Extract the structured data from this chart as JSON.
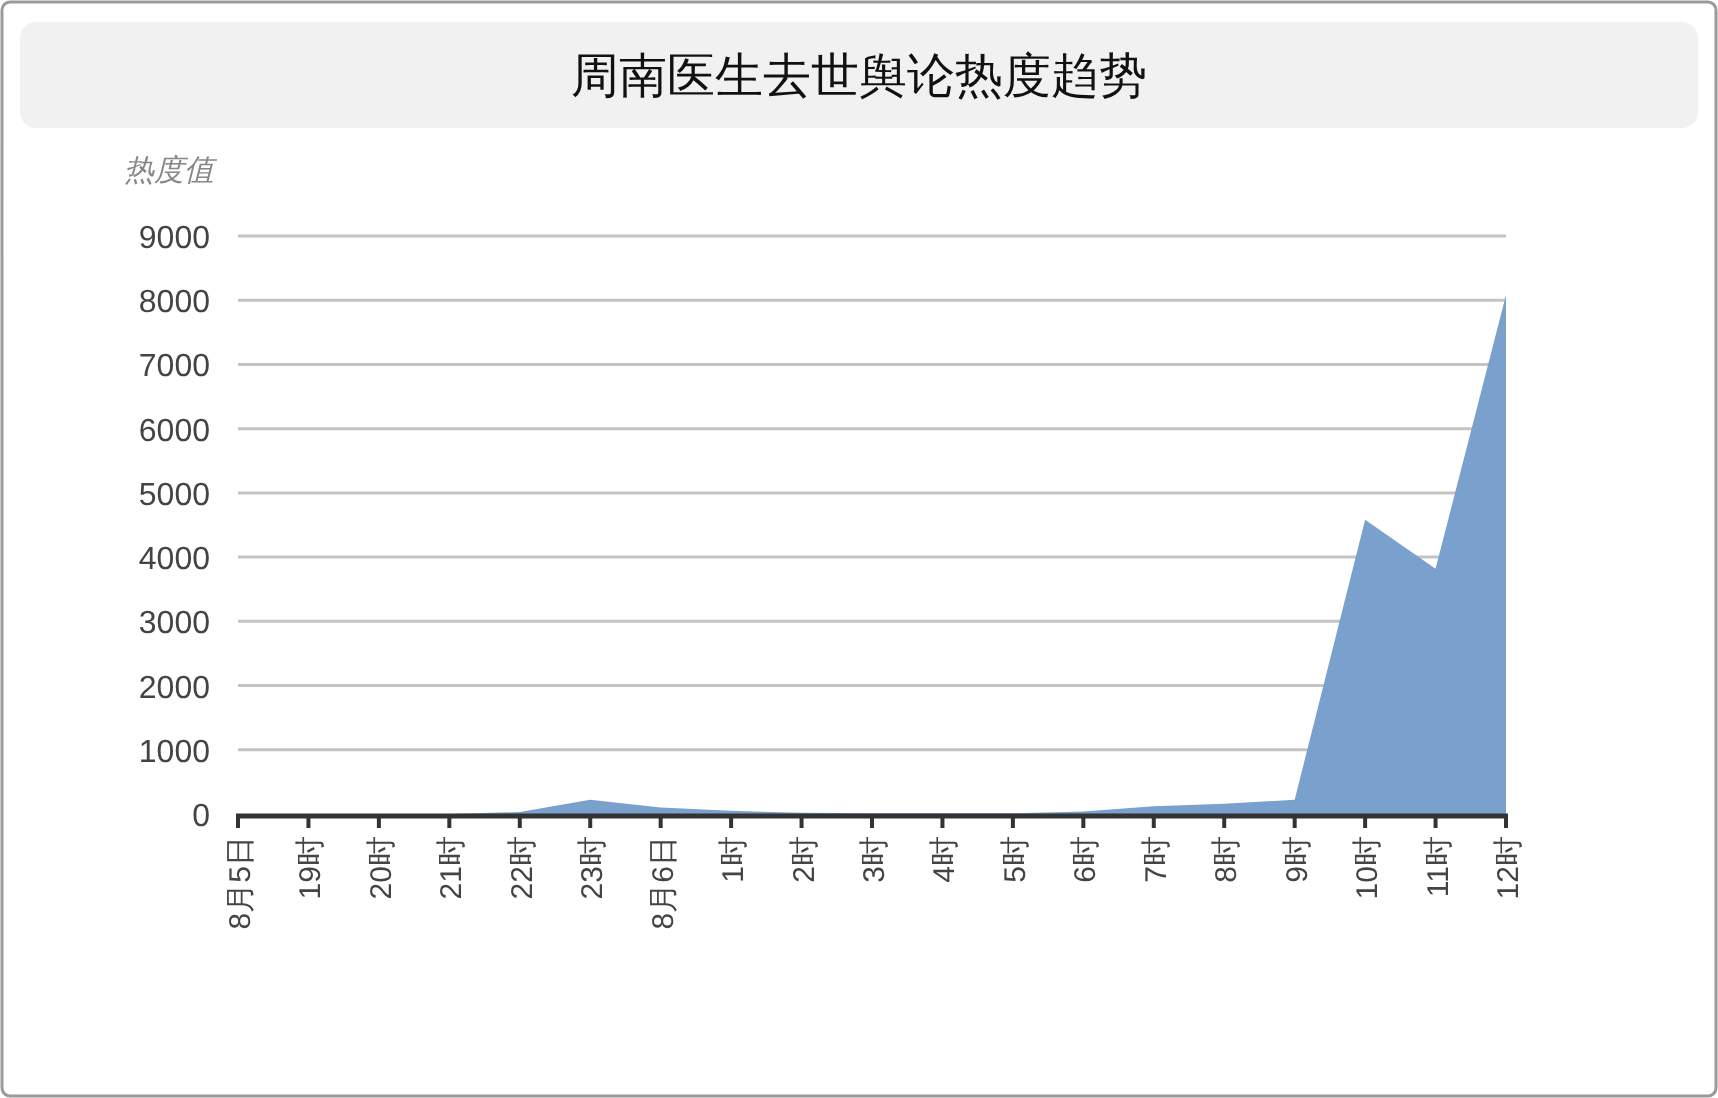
{
  "chart_data": {
    "type": "area",
    "title": "周南医生去世舆论热度趋势",
    "ylabel": "热度值",
    "categories": [
      "8月5日",
      "19时",
      "20时",
      "21时",
      "22时",
      "23时",
      "8月6日",
      "1时",
      "2时",
      "3时",
      "4时",
      "5时",
      "6时",
      "7时",
      "8时",
      "9时",
      "10时",
      "11时",
      "12时"
    ],
    "values": [
      0,
      0,
      0,
      0,
      30,
      220,
      100,
      50,
      20,
      10,
      10,
      10,
      40,
      120,
      160,
      220,
      4580,
      3820,
      8080
    ],
    "color": "#7aa1cd",
    "ylim": [
      0,
      9000
    ],
    "yticks": [
      0,
      1000,
      2000,
      3000,
      4000,
      5000,
      6000,
      7000,
      8000,
      9000
    ],
    "grid": "y"
  }
}
